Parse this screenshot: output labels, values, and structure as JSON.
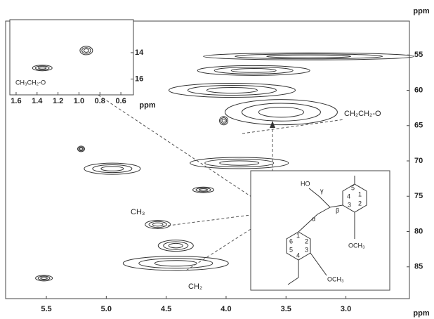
{
  "chart_data": [
    {
      "type": "contour",
      "x_label": "ppm",
      "y_label": "ppm",
      "xlim": [
        5.84,
        2.47
      ],
      "ylim": [
        50.2,
        89.5
      ],
      "xticks": [
        5.5,
        {
          "value": 5,
          "label": "5.0"
        },
        4.5,
        {
          "value": 4,
          "label": "4.0"
        },
        3.5,
        {
          "value": 3,
          "label": "3.0"
        }
      ],
      "yticks": [
        55,
        60,
        65,
        70,
        75,
        80,
        85
      ],
      "color": "#333333",
      "x": [
        3.31,
        3.77,
        3.95,
        3.54,
        3.89,
        4.95,
        4.57,
        4.42,
        5.52,
        5.21,
        4.02,
        4.42,
        4.19
      ],
      "y": [
        55.2,
        57.2,
        60.0,
        63.1,
        70.3,
        71.1,
        79.0,
        84.5,
        86.6,
        68.3,
        64.3,
        82.0,
        74.1
      ],
      "annotations": [
        "CH₂CH₂-O",
        "CH₃",
        "CH₂"
      ]
    },
    {
      "type": "contour",
      "y_label": "ppm",
      "xlim": [
        1.66,
        0.48
      ],
      "ylim": [
        11.5,
        17.2
      ],
      "xticks": [
        1.6,
        1.4,
        1.2,
        {
          "value": 1,
          "label": "1.0"
        },
        0.8,
        0.6
      ],
      "yticks": [
        14,
        16
      ],
      "color": "#333333",
      "x": [
        0.93,
        1.35
      ],
      "y": [
        13.84,
        15.16
      ],
      "annotations": [
        "CH₃CH₂-O"
      ]
    }
  ],
  "structure": {
    "labels": [
      "HO",
      "γ",
      "β",
      "α",
      "1",
      "2",
      "3",
      "4",
      "5",
      "OCH₃",
      "1",
      "2",
      "3",
      "4",
      "5",
      "6",
      "OCH₃"
    ]
  }
}
